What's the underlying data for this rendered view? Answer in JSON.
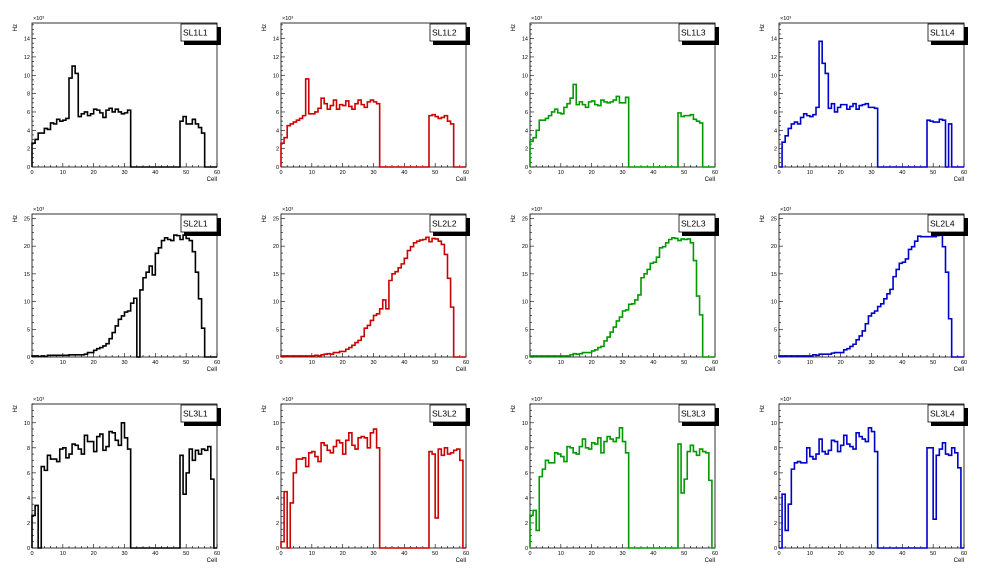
{
  "chart_data": [
    {
      "title": "SL1L1",
      "type": "bar",
      "color": "#000000",
      "xlabel": "Cell",
      "ylabel": "Hz",
      "y_multiplier": "×10³",
      "x_range": [
        0,
        60
      ],
      "y_range": [
        0,
        15.7
      ],
      "x_ticks": [
        "0",
        "10",
        "20",
        "30",
        "40",
        "50",
        "60"
      ],
      "y_ticks": [
        "0",
        "2",
        "4",
        "6",
        "8",
        "10",
        "12",
        "14"
      ],
      "y_tick_step": 2,
      "values": [
        2.6,
        3.0,
        3.7,
        3.7,
        4.2,
        4.1,
        4.8,
        4.7,
        5.2,
        5.0,
        5.1,
        5.3,
        9.7,
        11.0,
        10.2,
        5.5,
        5.8,
        6.0,
        5.6,
        5.8,
        6.3,
        6.2,
        5.9,
        5.4,
        6.2,
        6.4,
        6.0,
        6.3,
        6.0,
        5.8,
        5.9,
        6.2,
        0,
        0,
        0,
        0,
        0,
        0,
        0,
        0,
        0,
        0,
        0,
        0,
        0,
        0,
        0,
        0,
        5.0,
        5.5,
        4.7,
        4.7,
        5.2,
        4.7,
        4.3,
        3.7,
        0,
        0,
        0,
        0
      ]
    },
    {
      "title": "SL1L2",
      "type": "bar",
      "color": "#cc0000",
      "xlabel": "Cell",
      "ylabel": "Hz",
      "y_multiplier": "×10³",
      "x_range": [
        0,
        60
      ],
      "y_range": [
        0,
        15.7
      ],
      "x_ticks": [
        "0",
        "10",
        "20",
        "30",
        "40",
        "50",
        "60"
      ],
      "y_ticks": [
        "0",
        "2",
        "4",
        "6",
        "8",
        "10",
        "12",
        "14"
      ],
      "y_tick_step": 2,
      "values": [
        2.6,
        3.2,
        4.5,
        4.7,
        4.9,
        5.1,
        5.3,
        5.6,
        9.6,
        5.8,
        5.8,
        6.0,
        6.4,
        7.5,
        6.9,
        6.3,
        6.7,
        7.3,
        6.3,
        6.8,
        6.7,
        7.2,
        6.6,
        6.3,
        6.9,
        7.3,
        6.8,
        6.5,
        7.1,
        7.3,
        7.1,
        6.9,
        0,
        0,
        0,
        0,
        0,
        0,
        0,
        0,
        0,
        0,
        0,
        0,
        0,
        0,
        0,
        0,
        5.6,
        5.7,
        5.5,
        5.3,
        5.4,
        5.6,
        5.0,
        4.7,
        0,
        0,
        0,
        0
      ]
    },
    {
      "title": "SL1L3",
      "type": "bar",
      "color": "#009900",
      "xlabel": "Cell",
      "ylabel": "Hz",
      "y_multiplier": "×10³",
      "x_range": [
        0,
        60
      ],
      "y_range": [
        0,
        15.7
      ],
      "x_ticks": [
        "0",
        "10",
        "20",
        "30",
        "40",
        "50",
        "60"
      ],
      "y_ticks": [
        "0",
        "2",
        "4",
        "6",
        "8",
        "10",
        "12",
        "14"
      ],
      "y_tick_step": 2,
      "values": [
        2.8,
        3.2,
        4.0,
        5.1,
        5.1,
        5.3,
        5.6,
        6.0,
        6.3,
        5.9,
        5.8,
        6.5,
        6.9,
        7.5,
        9.0,
        6.8,
        7.1,
        6.8,
        6.5,
        7.1,
        7.2,
        6.8,
        6.7,
        7.3,
        7.1,
        7.0,
        7.1,
        7.3,
        7.7,
        7.0,
        7.0,
        7.6,
        0,
        0,
        0,
        0,
        0,
        0,
        0,
        0,
        0,
        0,
        0,
        0,
        0,
        0,
        0,
        0,
        5.9,
        5.5,
        5.6,
        5.6,
        5.7,
        5.2,
        5.0,
        4.8,
        0,
        0,
        0,
        0
      ]
    },
    {
      "title": "SL1L4",
      "type": "bar",
      "color": "#0000cc",
      "xlabel": "Cell",
      "ylabel": "Hz",
      "y_multiplier": "×10³",
      "x_range": [
        0,
        60
      ],
      "y_range": [
        0,
        15.7
      ],
      "x_ticks": [
        "0",
        "10",
        "20",
        "30",
        "40",
        "50",
        "60"
      ],
      "y_ticks": [
        "0",
        "2",
        "4",
        "6",
        "8",
        "10",
        "12",
        "14"
      ],
      "y_tick_step": 2,
      "values": [
        0,
        2.7,
        3.4,
        4.2,
        4.7,
        4.9,
        4.7,
        5.4,
        5.8,
        5.6,
        5.5,
        5.7,
        6.5,
        13.7,
        11.3,
        10.2,
        6.4,
        6.9,
        6.0,
        6.5,
        6.8,
        6.8,
        6.3,
        6.6,
        6.9,
        6.3,
        6.7,
        6.8,
        6.9,
        6.5,
        6.5,
        6.4,
        0,
        0,
        0,
        0,
        0,
        0,
        0,
        0,
        0,
        0,
        0,
        0,
        0,
        0,
        0,
        0,
        5.1,
        5.0,
        4.9,
        4.9,
        5.2,
        5.1,
        0,
        4.7,
        0,
        0,
        0,
        0
      ]
    },
    {
      "title": "SL2L1",
      "type": "bar",
      "color": "#000000",
      "xlabel": "Cell",
      "ylabel": "Hz",
      "y_multiplier": "×10³",
      "x_range": [
        0,
        60
      ],
      "y_range": [
        0,
        25.8
      ],
      "x_ticks": [
        "0",
        "10",
        "20",
        "30",
        "40",
        "50",
        "60"
      ],
      "y_ticks": [
        "0",
        "5",
        "10",
        "15",
        "20",
        "25"
      ],
      "y_tick_step": 5,
      "values": [
        0.2,
        0.2,
        0.1,
        0.2,
        0.1,
        0.3,
        0.3,
        0.3,
        0.3,
        0.3,
        0.3,
        0.3,
        0.4,
        0.4,
        0.4,
        0.4,
        0.4,
        0.5,
        0.8,
        0.8,
        1.2,
        1.5,
        1.7,
        2.0,
        2.4,
        3.3,
        4.4,
        5.6,
        6.8,
        7.4,
        8.1,
        8.3,
        9.7,
        10.6,
        0,
        12.1,
        14.3,
        15.3,
        16.4,
        14.8,
        18.7,
        19.7,
        21.0,
        21.5,
        21.2,
        21.0,
        22.0,
        21.9,
        21.2,
        22.0,
        21.4,
        21.0,
        19.0,
        15.3,
        10.5,
        5.2,
        0,
        0,
        0,
        0
      ]
    },
    {
      "title": "SL2L2",
      "type": "bar",
      "color": "#cc0000",
      "xlabel": "Cell",
      "ylabel": "Hz",
      "y_multiplier": "×10³",
      "x_range": [
        0,
        60
      ],
      "y_range": [
        0,
        25.8
      ],
      "x_ticks": [
        "0",
        "10",
        "20",
        "30",
        "40",
        "50",
        "60"
      ],
      "y_ticks": [
        "0",
        "5",
        "10",
        "15",
        "20",
        "25"
      ],
      "y_tick_step": 5,
      "values": [
        0.2,
        0.2,
        0.2,
        0.2,
        0.2,
        0.2,
        0.2,
        0.2,
        0.2,
        0.2,
        0.2,
        0.3,
        0.2,
        0.4,
        0.5,
        0.6,
        0.5,
        0.8,
        0.8,
        1.0,
        1.0,
        1.4,
        1.7,
        2.1,
        2.6,
        3.0,
        3.7,
        5.2,
        5.7,
        6.6,
        7.5,
        7.8,
        8.7,
        10.3,
        8.7,
        13.8,
        15.0,
        15.4,
        16.1,
        16.8,
        17.8,
        19.2,
        19.9,
        20.6,
        20.9,
        21.1,
        21.2,
        21.6,
        20.8,
        21.4,
        21.3,
        20.9,
        20.3,
        18.5,
        14.2,
        9.0,
        0,
        0,
        0,
        0
      ]
    },
    {
      "title": "SL2L3",
      "type": "bar",
      "color": "#009900",
      "xlabel": "Cell",
      "ylabel": "Hz",
      "y_multiplier": "×10³",
      "x_range": [
        0,
        60
      ],
      "y_range": [
        0,
        25.8
      ],
      "x_ticks": [
        "0",
        "10",
        "20",
        "30",
        "40",
        "50",
        "60"
      ],
      "y_ticks": [
        "0",
        "5",
        "10",
        "15",
        "20",
        "25"
      ],
      "y_tick_step": 5,
      "values": [
        0.2,
        0.2,
        0.2,
        0.2,
        0.2,
        0.2,
        0.2,
        0.2,
        0.2,
        0.2,
        0.2,
        0.2,
        0.2,
        0.4,
        0.6,
        0.5,
        0.6,
        0.8,
        0.8,
        0.8,
        1.1,
        1.3,
        1.7,
        1.9,
        2.9,
        3.6,
        4.5,
        5.4,
        6.5,
        7.2,
        8.3,
        8.5,
        9.5,
        9.6,
        10.3,
        11.2,
        14.3,
        15.0,
        15.8,
        16.9,
        17.1,
        18.0,
        19.7,
        19.9,
        20.6,
        21.2,
        21.5,
        21.4,
        21.0,
        21.3,
        21.2,
        21.3,
        20.6,
        17.4,
        11.0,
        7.6,
        0,
        0,
        0,
        0
      ]
    },
    {
      "title": "SL2L4",
      "type": "bar",
      "color": "#0000cc",
      "xlabel": "Cell",
      "ylabel": "Hz",
      "y_multiplier": "×10³",
      "x_range": [
        0,
        60
      ],
      "y_range": [
        0,
        25.8
      ],
      "x_ticks": [
        "0",
        "10",
        "20",
        "30",
        "40",
        "50",
        "60"
      ],
      "y_ticks": [
        "0",
        "5",
        "10",
        "15",
        "20",
        "25"
      ],
      "y_tick_step": 5,
      "values": [
        0.2,
        0.2,
        0.2,
        0.2,
        0.2,
        0.2,
        0.2,
        0.2,
        0.2,
        0.2,
        0.2,
        0.4,
        0.3,
        0.5,
        0.5,
        0.5,
        0.5,
        0.7,
        0.8,
        0.8,
        0.8,
        1.3,
        1.5,
        1.9,
        2.3,
        3.1,
        3.8,
        4.7,
        6.0,
        7.4,
        7.9,
        8.3,
        9.1,
        9.6,
        10.5,
        11.4,
        12.2,
        14.5,
        15.8,
        16.9,
        17.1,
        17.7,
        19.4,
        19.9,
        20.9,
        21.8,
        21.7,
        21.7,
        21.7,
        21.7,
        21.7,
        21.9,
        22.0,
        19.9,
        15.3,
        6.9,
        0,
        0,
        0,
        0
      ]
    },
    {
      "title": "SL3L1",
      "type": "bar",
      "color": "#000000",
      "xlabel": "Cell",
      "ylabel": "Hz",
      "y_multiplier": "×10³",
      "x_range": [
        0,
        60
      ],
      "y_range": [
        0,
        11.5
      ],
      "x_ticks": [
        "0",
        "10",
        "20",
        "30",
        "40",
        "50",
        "60"
      ],
      "y_ticks": [
        "0",
        "2",
        "4",
        "6",
        "8",
        "10"
      ],
      "y_tick_step": 2,
      "values": [
        2.6,
        3.4,
        0,
        6.5,
        6.2,
        7.4,
        7.1,
        7.1,
        6.9,
        7.9,
        8.0,
        7.2,
        7.5,
        8.3,
        8.2,
        7.9,
        7.5,
        9.0,
        8.5,
        8.5,
        7.7,
        8.9,
        9.1,
        7.8,
        8.1,
        9.3,
        9.2,
        8.6,
        8.2,
        10.0,
        8.8,
        7.9,
        0,
        0,
        0,
        0,
        0,
        0,
        0,
        0,
        0,
        0,
        0,
        0,
        0,
        0,
        0,
        0,
        7.4,
        4.3,
        6.0,
        7.9,
        7.0,
        7.8,
        7.5,
        7.9,
        7.8,
        8.1,
        5.5,
        0
      ]
    },
    {
      "title": "SL3L2",
      "type": "bar",
      "color": "#cc0000",
      "xlabel": "Cell",
      "ylabel": "Hz",
      "y_multiplier": "×10³",
      "x_range": [
        0,
        60
      ],
      "y_range": [
        0,
        11.5
      ],
      "x_ticks": [
        "0",
        "10",
        "20",
        "30",
        "40",
        "50",
        "60"
      ],
      "y_ticks": [
        "0",
        "2",
        "4",
        "6",
        "8",
        "10"
      ],
      "y_tick_step": 2,
      "values": [
        0.5,
        4.5,
        0,
        3.6,
        6.0,
        7.1,
        7.1,
        7.2,
        6.5,
        7.6,
        7.7,
        7.3,
        6.9,
        8.4,
        8.2,
        7.8,
        7.6,
        8.1,
        8.6,
        8.4,
        7.5,
        8.6,
        9.2,
        8.2,
        7.9,
        8.8,
        8.9,
        8.8,
        8.0,
        9.2,
        9.5,
        8.0,
        0,
        0,
        0,
        0,
        0,
        0,
        0,
        0,
        0,
        0,
        0,
        0,
        0,
        0,
        0,
        0,
        7.7,
        7.5,
        2.4,
        7.9,
        7.4,
        8.0,
        7.5,
        7.6,
        7.8,
        7.9,
        7.0,
        0
      ]
    },
    {
      "title": "SL3L3",
      "type": "bar",
      "color": "#009900",
      "xlabel": "Cell",
      "ylabel": "Hz",
      "y_multiplier": "×10³",
      "x_range": [
        0,
        60
      ],
      "y_range": [
        0,
        11.5
      ],
      "x_ticks": [
        "0",
        "10",
        "20",
        "30",
        "40",
        "50",
        "60"
      ],
      "y_ticks": [
        "0",
        "2",
        "4",
        "6",
        "8",
        "10"
      ],
      "y_tick_step": 2,
      "values": [
        2.6,
        3.0,
        1.4,
        5.7,
        6.3,
        7.0,
        6.8,
        6.8,
        7.6,
        7.5,
        7.3,
        6.9,
        8.1,
        8.0,
        7.6,
        7.5,
        8.1,
        8.7,
        8.0,
        7.9,
        8.4,
        8.3,
        8.8,
        7.6,
        8.5,
        8.9,
        8.7,
        8.5,
        8.8,
        9.6,
        8.5,
        7.6,
        0,
        0,
        0,
        0,
        0,
        0,
        0,
        0,
        0,
        0,
        0,
        0,
        0,
        0,
        0,
        0,
        8.3,
        4.4,
        5.5,
        7.7,
        8.2,
        7.7,
        7.4,
        7.9,
        7.7,
        7.6,
        5.4,
        0
      ]
    },
    {
      "title": "SL3L4",
      "type": "bar",
      "color": "#0000cc",
      "xlabel": "Cell",
      "ylabel": "Hz",
      "y_multiplier": "×10³",
      "x_range": [
        0,
        60
      ],
      "y_range": [
        0,
        11.5
      ],
      "x_ticks": [
        "0",
        "10",
        "20",
        "30",
        "40",
        "50",
        "60"
      ],
      "y_ticks": [
        "0",
        "2",
        "4",
        "6",
        "8",
        "10"
      ],
      "y_tick_step": 2,
      "values": [
        0,
        4.3,
        1.4,
        3.5,
        6.3,
        6.8,
        6.9,
        6.8,
        6.8,
        8.0,
        7.3,
        7.1,
        7.5,
        8.7,
        7.7,
        7.5,
        7.8,
        8.6,
        8.5,
        7.7,
        8.2,
        9.0,
        8.3,
        8.1,
        7.9,
        9.2,
        8.9,
        8.7,
        8.5,
        9.6,
        9.3,
        7.7,
        0,
        0,
        0,
        0,
        0,
        0,
        0,
        0,
        0,
        0,
        0,
        0,
        0,
        0,
        0,
        0,
        8.0,
        8.0,
        2.3,
        7.4,
        7.9,
        8.4,
        7.5,
        7.4,
        8.0,
        7.6,
        6.4,
        0
      ]
    }
  ]
}
